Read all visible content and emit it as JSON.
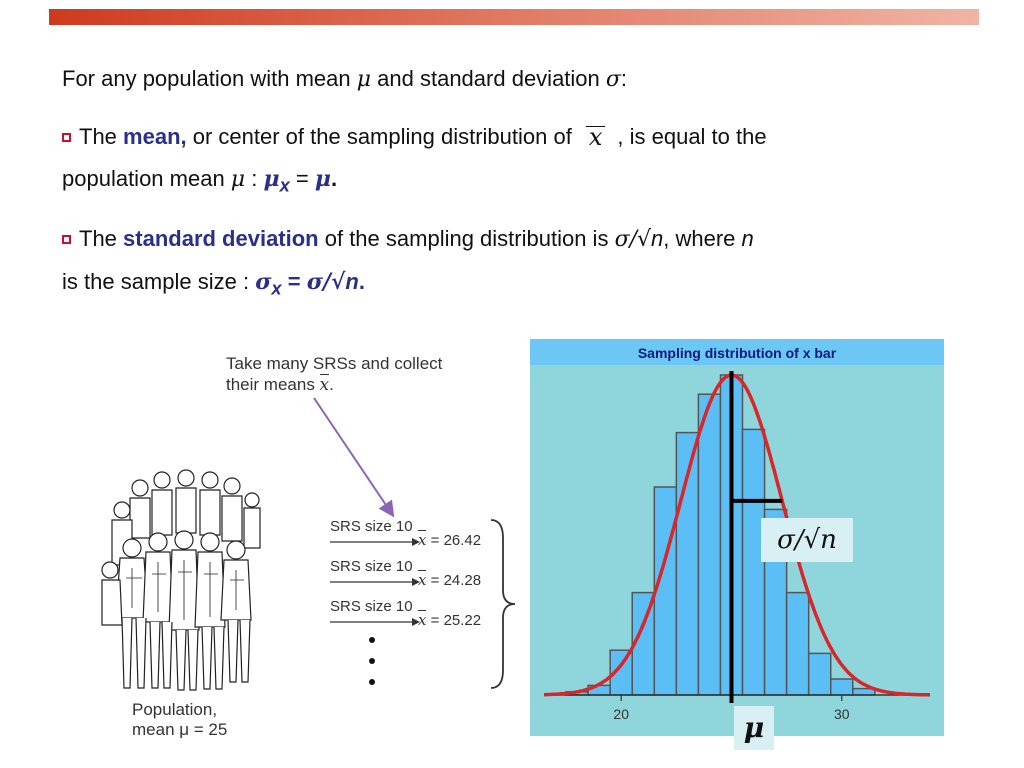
{
  "intro": {
    "text_a": "For any population with mean ",
    "mu": "μ",
    "text_b": " and standard deviation ",
    "sigma": "σ",
    "text_c": ":"
  },
  "bullet_mean": {
    "text_a": "The ",
    "highlight": "mean,",
    "text_b": " or center of the sampling distribution of",
    "xbar": "x",
    "text_c": ", is equal to the",
    "line2_a": "population mean ",
    "mu": "μ",
    "colon": " : ",
    "formula_mu": "μ",
    "formula_sub": "x",
    "formula_eq": " = ",
    "formula_mu2": "μ",
    "formula_end": "."
  },
  "bullet_sd": {
    "text_a": "The ",
    "highlight": "standard deviation",
    "text_b": " of the sampling distribution is ",
    "sigma_frac": "σ/√",
    "n": "n",
    "text_c": ", where ",
    "n2": "n",
    "line2_a": "is the sample size : ",
    "formula_sigma": "σ",
    "formula_sub": "x",
    "formula_eq": " = ",
    "formula_frac": "σ/√",
    "formula_n": "n",
    "formula_end": "."
  },
  "illustration": {
    "caption_line1": "Take many SRSs and collect",
    "caption_line2": "their means ",
    "caption_xbar": "x",
    "caption_end": ".",
    "population_line1": "Population,",
    "population_line2": "mean μ = 25",
    "samples": [
      {
        "label": "SRS size 10",
        "mean_prefix": "x",
        "mean_value": " = 26.42"
      },
      {
        "label": "SRS size 10",
        "mean_prefix": "x",
        "mean_value": " = 24.28"
      },
      {
        "label": "SRS size 10",
        "mean_prefix": "x",
        "mean_value": " = 25.22"
      }
    ]
  },
  "chart_data": {
    "type": "bar",
    "title": "Sampling distribution of x bar",
    "bins": [
      17.5,
      18.5,
      19.5,
      20.5,
      21.5,
      22.5,
      23.5,
      24.5,
      25.5,
      26.5,
      27.5,
      28.5,
      29.5,
      30.5,
      31.5,
      32.5
    ],
    "counts": [
      0.01,
      0.03,
      0.14,
      0.32,
      0.65,
      0.82,
      0.94,
      1.0,
      0.83,
      0.58,
      0.32,
      0.13,
      0.05,
      0.02,
      0.0
    ],
    "mean": 25,
    "sd": 2.3,
    "xlim": [
      16.5,
      34
    ],
    "xticks": [
      "20",
      "30"
    ],
    "xtick_values": [
      20,
      30
    ],
    "sigma_label": "σ/√n",
    "mu_label": "μ",
    "colors": {
      "background": "#8fd6dc",
      "bar": "#5bbef5",
      "bar_edge": "#555555",
      "curve": "#d9262b",
      "mean_line": "#000000"
    }
  }
}
